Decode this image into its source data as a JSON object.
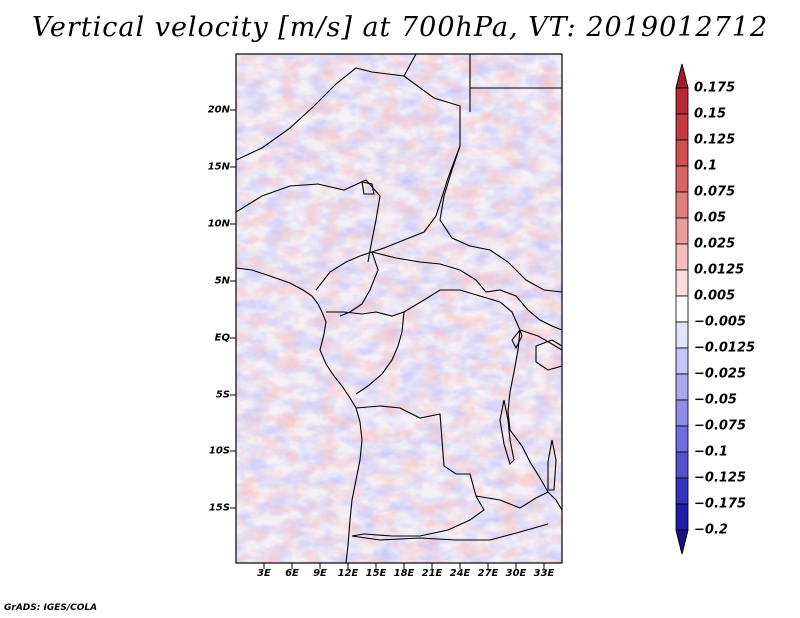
{
  "title": "Vertical velocity [m/s] at 700hPa, VT: 2019012712",
  "credit": "GrADS: IGES/COLA",
  "map": {
    "field": "vertical velocity",
    "units": "m/s",
    "level": "700hPa",
    "valid_time": "2019012712",
    "lat_labels": [
      "20N",
      "15N",
      "10N",
      "5N",
      "EQ",
      "5S",
      "10S",
      "15S"
    ],
    "lon_labels": [
      "3E",
      "6E",
      "9E",
      "12E",
      "15E",
      "18E",
      "21E",
      "24E",
      "27E",
      "30E",
      "33E"
    ]
  },
  "colorbar": {
    "labels": [
      "0.175",
      "0.15",
      "0.125",
      "0.1",
      "0.075",
      "0.05",
      "0.025",
      "0.0125",
      "0.005",
      "−0.005",
      "−0.0125",
      "−0.025",
      "−0.05",
      "−0.075",
      "−0.1",
      "−0.125",
      "−0.175",
      "−0.2"
    ],
    "colors": [
      "#a51c2a",
      "#b82a33",
      "#c53a3f",
      "#d24f4f",
      "#db6463",
      "#e27f7e",
      "#ea9d9b",
      "#f2bebb",
      "#f9dedd",
      "#ffffff",
      "#e3e3fb",
      "#c6c6f6",
      "#a9a9ef",
      "#8d8de6",
      "#6f6fdb",
      "#5252cf",
      "#3434bf",
      "#1d1da6",
      "#13138a"
    ]
  }
}
